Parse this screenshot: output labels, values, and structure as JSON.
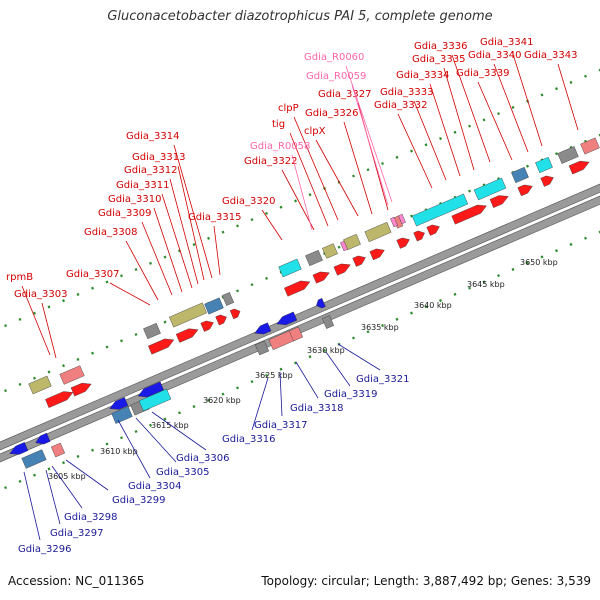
{
  "title": "Gluconacetobacter diazotrophicus PAI 5, complete genome",
  "footer": {
    "accession": "Accession: NC_011365",
    "topology": "Topology: circular; Length: 3,887,492 bp; Genes: 3,539"
  },
  "colors": {
    "forward_gene": "#ff1a1a",
    "reverse_gene": "#1a1ae6",
    "rna_gene": "#ff88cc",
    "label_forward": "#d40000",
    "label_reverse": "#1a1a99",
    "label_rna": "#ff66aa",
    "cog_tan": "#bdb76b",
    "cog_cyan": "#22e0e8",
    "cog_pink": "#f08080",
    "cog_steel": "#4682b4",
    "cog_gray": "#8a8a8a",
    "scale_tick": "#2e8b2e"
  },
  "scale_labels": [
    "3605 kbp",
    "3610 kbp",
    "3615 kbp",
    "3620 kbp",
    "3625 kbp",
    "3630 kbp",
    "3635 kbp",
    "3640 kbp",
    "3645 kbp",
    "3650 kbp"
  ],
  "labels_forward": [
    "rpmB",
    "Gdia_3303",
    "Gdia_3307",
    "Gdia_3308",
    "Gdia_3309",
    "Gdia_3310",
    "Gdia_3311",
    "Gdia_3312",
    "Gdia_3313",
    "Gdia_3314",
    "Gdia_3315",
    "Gdia_3320",
    "Gdia_3322",
    "tig",
    "clpP",
    "clpX",
    "Gdia_3326",
    "Gdia_3327",
    "Gdia_3332",
    "Gdia_3333",
    "Gdia_3334",
    "Gdia_3335",
    "Gdia_3336",
    "Gdia_3339",
    "Gdia_3340",
    "Gdia_3341",
    "Gdia_3343"
  ],
  "labels_rna": [
    "Gdia_R0058",
    "Gdia_R0059",
    "Gdia_R0060"
  ],
  "labels_reverse": [
    "Gdia_3296",
    "Gdia_3297",
    "Gdia_3298",
    "Gdia_3299",
    "Gdia_3304",
    "Gdia_3305",
    "Gdia_3306",
    "Gdia_3316",
    "Gdia_3317",
    "Gdia_3318",
    "Gdia_3319",
    "Gdia_3321"
  ]
}
